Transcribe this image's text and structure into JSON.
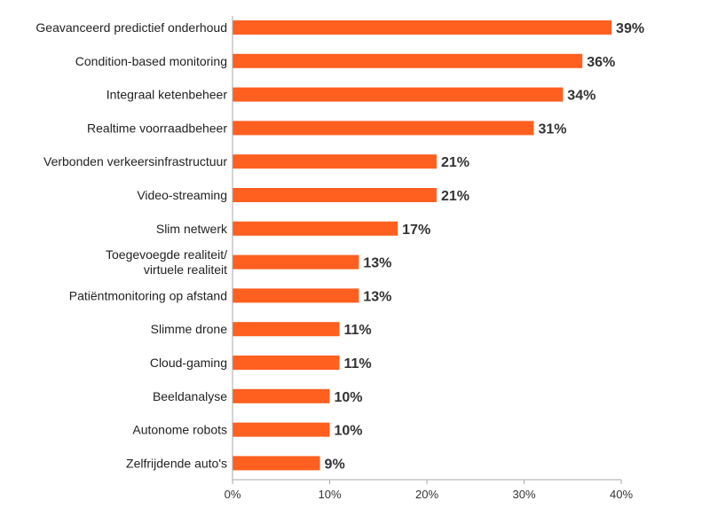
{
  "chart_data": {
    "type": "bar",
    "orientation": "horizontal",
    "title": "",
    "xlabel": "",
    "ylabel": "",
    "categories": [
      "Geavanceerd predictief onderhoud",
      "Condition-based monitoring",
      "Integraal ketenbeheer",
      "Realtime voorraadbeheer",
      "Verbonden verkeersinfrastructuur",
      "Video-streaming",
      "Slim netwerk",
      "Toegevoegde realiteit/ virtuele realiteit",
      "Patiëntmonitoring op afstand",
      "Slimme drone",
      "Cloud-gaming",
      "Beeldanalyse",
      "Autonome robots",
      "Zelfrijdende auto's"
    ],
    "category_lines": [
      [
        "Geavanceerd predictief onderhoud"
      ],
      [
        "Condition-based monitoring"
      ],
      [
        "Integraal ketenbeheer"
      ],
      [
        "Realtime voorraadbeheer"
      ],
      [
        "Verbonden verkeersinfrastructuur"
      ],
      [
        "Video-streaming"
      ],
      [
        "Slim netwerk"
      ],
      [
        "Toegevoegde realiteit/",
        "virtuele realiteit"
      ],
      [
        "Patiëntmonitoring op afstand"
      ],
      [
        "Slimme drone"
      ],
      [
        "Cloud-gaming"
      ],
      [
        "Beeldanalyse"
      ],
      [
        "Autonome robots"
      ],
      [
        "Zelfrijdende auto's"
      ]
    ],
    "values": [
      39,
      36,
      34,
      31,
      21,
      21,
      17,
      13,
      13,
      11,
      11,
      10,
      10,
      9
    ],
    "value_labels": [
      "39%",
      "36%",
      "34%",
      "31%",
      "21%",
      "21%",
      "17%",
      "13%",
      "13%",
      "11%",
      "11%",
      "10%",
      "10%",
      "9%"
    ],
    "xlim": [
      0,
      40
    ],
    "xticks": [
      0,
      10,
      20,
      30,
      40
    ],
    "xtick_labels": [
      "0%",
      "10%",
      "20%",
      "30%",
      "40%"
    ],
    "grid": false,
    "bar_color": "#FF5F1F",
    "axis_color": "#AAAAAA"
  }
}
